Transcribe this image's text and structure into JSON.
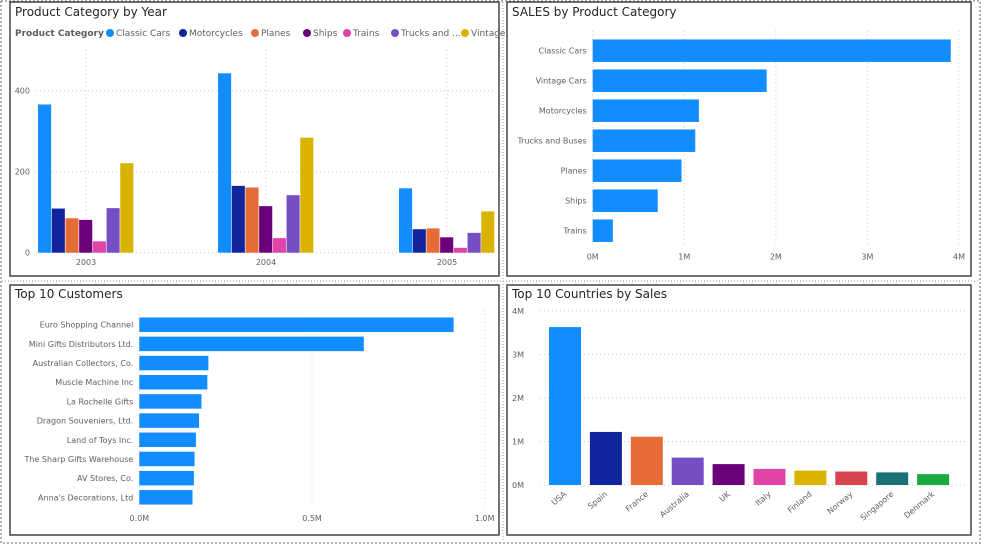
{
  "colors": {
    "Classic Cars": "#118DFF",
    "Motorcycles": "#12239E",
    "Planes": "#E66C37",
    "Ships": "#6B007B",
    "Trains": "#E044A7",
    "Trucks and Buses": "#744EC2",
    "Vintage Cars": "#D9B300",
    "bar_default": "#118DFF",
    "countries": [
      "#118DFF",
      "#12239E",
      "#E66C37",
      "#744EC2",
      "#6B007B",
      "#E044A7",
      "#D9B300",
      "#D64550",
      "#197278",
      "#1AAB40"
    ]
  },
  "chart_data": [
    {
      "type": "bar",
      "orientation": "vertical",
      "grouped": true,
      "title": "Product Category by Year",
      "legend_title": "Product Category",
      "legend_labels": [
        "Classic Cars",
        "Motorcycles",
        "Planes",
        "Ships",
        "Trains",
        "Trucks and ...",
        "Vintage ..."
      ],
      "legend_placement": "top-left",
      "categories": [
        "2003",
        "2004",
        "2005"
      ],
      "series": [
        {
          "name": "Classic Cars",
          "values": [
            366,
            443,
            159
          ]
        },
        {
          "name": "Motorcycles",
          "values": [
            109,
            165,
            58
          ]
        },
        {
          "name": "Planes",
          "values": [
            85,
            161,
            60
          ]
        },
        {
          "name": "Ships",
          "values": [
            81,
            115,
            38
          ]
        },
        {
          "name": "Trains",
          "values": [
            28,
            36,
            12
          ]
        },
        {
          "name": "Trucks and Buses",
          "values": [
            110,
            142,
            49
          ]
        },
        {
          "name": "Vintage Cars",
          "values": [
            221,
            284,
            102
          ]
        }
      ],
      "yticks": [
        "0",
        "200",
        "400"
      ],
      "ylim": [
        0,
        480
      ],
      "grid": true
    },
    {
      "type": "bar",
      "orientation": "horizontal",
      "title": "SALES by Product Category",
      "categories": [
        "Classic Cars",
        "Vintage Cars",
        "Motorcycles",
        "Trucks and Buses",
        "Planes",
        "Ships",
        "Trains"
      ],
      "values": [
        3.91,
        1.9,
        1.16,
        1.12,
        0.97,
        0.71,
        0.22
      ],
      "unit": "M",
      "xticks": [
        "0M",
        "1M",
        "2M",
        "3M",
        "4M"
      ],
      "xlim": [
        0,
        4
      ],
      "grid": true
    },
    {
      "type": "bar",
      "orientation": "horizontal",
      "title": "Top 10 Customers",
      "categories": [
        "Euro Shopping Channel",
        "Mini Gifts Distributors Ltd.",
        "Australian Collectors, Co.",
        "Muscle Machine Inc",
        "La Rochelle Gifts",
        "Dragon Souveniers, Ltd.",
        "Land of Toys Inc.",
        "The Sharp Gifts Warehouse",
        "AV Stores, Co.",
        "Anna's Decorations, Ltd"
      ],
      "values": [
        0.91,
        0.65,
        0.2,
        0.197,
        0.18,
        0.173,
        0.164,
        0.16,
        0.158,
        0.154
      ],
      "unit": "M",
      "xticks": [
        "0.0M",
        "0.5M",
        "1.0M"
      ],
      "xlim": [
        0,
        1
      ],
      "grid": true
    },
    {
      "type": "bar",
      "orientation": "vertical",
      "title": "Top 10 Countries by Sales",
      "categories": [
        "USA",
        "Spain",
        "France",
        "Australia",
        "UK",
        "Italy",
        "Finland",
        "Norway",
        "Singapore",
        "Denmark"
      ],
      "values": [
        3.63,
        1.22,
        1.11,
        0.63,
        0.48,
        0.37,
        0.33,
        0.31,
        0.29,
        0.25
      ],
      "unit": "M",
      "yticks": [
        "0M",
        "1M",
        "2M",
        "3M",
        "4M"
      ],
      "ylim": [
        0,
        4
      ],
      "grid": true
    }
  ]
}
